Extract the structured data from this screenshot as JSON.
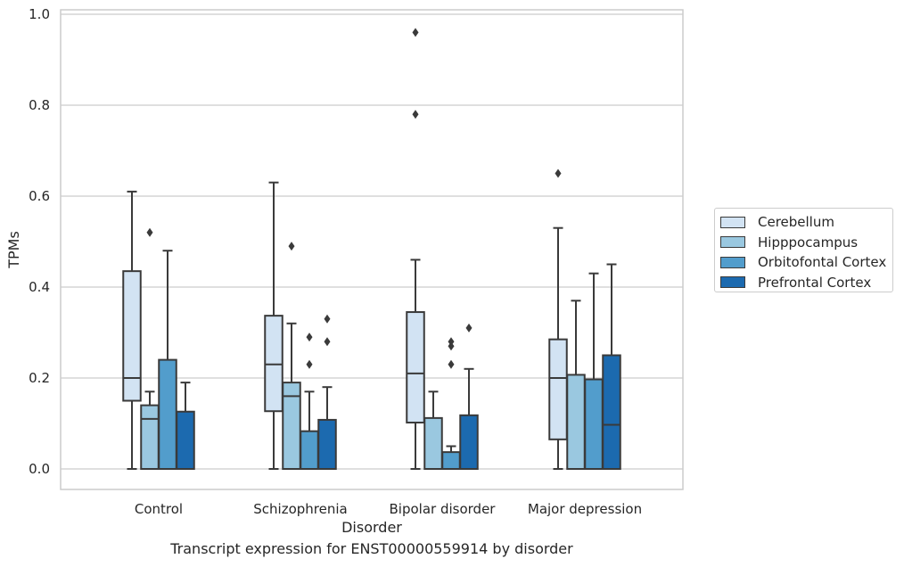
{
  "chart_data": {
    "type": "box",
    "caption": "Transcript expression for ENST00000559914 by disorder",
    "xlabel": "Disorder",
    "ylabel": "TPMs",
    "ylim": [
      -0.045,
      1.01
    ],
    "yticks": [
      "0.0",
      "0.2",
      "0.4",
      "0.6",
      "0.8",
      "1.0"
    ],
    "ytick_values": [
      0,
      0.2,
      0.4,
      0.6,
      0.8,
      1.0
    ],
    "grid": "horizontal",
    "legend_position": "right",
    "categories": [
      "Control",
      "Schizophrenia",
      "Bipolar disorder",
      "Major depression"
    ],
    "series": [
      {
        "name": "Cerebellum",
        "color": "#d2e3f3",
        "boxes": [
          {
            "min": 0,
            "q1": 0.15,
            "median": 0.2,
            "q3": 0.435,
            "max": 0.61,
            "outliers": []
          },
          {
            "min": 0,
            "q1": 0.127,
            "median": 0.23,
            "q3": 0.337,
            "max": 0.63,
            "outliers": []
          },
          {
            "min": 0,
            "q1": 0.102,
            "median": 0.21,
            "q3": 0.345,
            "max": 0.46,
            "outliers": [
              0.96,
              0.78
            ]
          },
          {
            "min": 0,
            "q1": 0.065,
            "median": 0.2,
            "q3": 0.285,
            "max": 0.53,
            "outliers": [
              0.65
            ]
          }
        ]
      },
      {
        "name": "Hipppocampus",
        "color": "#9ac8e0",
        "boxes": [
          {
            "min": 0,
            "q1": 0,
            "median": 0.11,
            "q3": 0.14,
            "max": 0.17,
            "outliers": [
              0.52
            ]
          },
          {
            "min": 0,
            "q1": 0,
            "median": 0.16,
            "q3": 0.19,
            "max": 0.32,
            "outliers": [
              0.49
            ]
          },
          {
            "min": 0,
            "q1": 0,
            "median": 0,
            "q3": 0.112,
            "max": 0.17,
            "outliers": []
          },
          {
            "min": 0,
            "q1": 0,
            "median": 0,
            "q3": 0.207,
            "max": 0.37,
            "outliers": []
          }
        ]
      },
      {
        "name": "Orbitofontal Cortex",
        "color": "#529dcc",
        "boxes": [
          {
            "min": 0,
            "q1": 0,
            "median": 0,
            "q3": 0.24,
            "max": 0.48,
            "outliers": []
          },
          {
            "min": 0,
            "q1": 0,
            "median": 0,
            "q3": 0.083,
            "max": 0.17,
            "outliers": [
              0.29,
              0.23
            ]
          },
          {
            "min": 0,
            "q1": 0,
            "median": 0,
            "q3": 0.037,
            "max": 0.05,
            "outliers": [
              0.28,
              0.27,
              0.23
            ]
          },
          {
            "min": 0,
            "q1": 0,
            "median": 0,
            "q3": 0.197,
            "max": 0.43,
            "outliers": []
          }
        ]
      },
      {
        "name": "Prefrontal Cortex",
        "color": "#1c6aaf",
        "boxes": [
          {
            "min": 0,
            "q1": 0,
            "median": 0,
            "q3": 0.126,
            "max": 0.19,
            "outliers": []
          },
          {
            "min": 0,
            "q1": 0,
            "median": 0,
            "q3": 0.108,
            "max": 0.18,
            "outliers": [
              0.33,
              0.28
            ]
          },
          {
            "min": 0,
            "q1": 0,
            "median": 0,
            "q3": 0.118,
            "max": 0.22,
            "outliers": [
              0.31
            ]
          },
          {
            "min": 0,
            "q1": 0,
            "median": 0.097,
            "q3": 0.25,
            "max": 0.45,
            "outliers": []
          }
        ]
      }
    ]
  }
}
